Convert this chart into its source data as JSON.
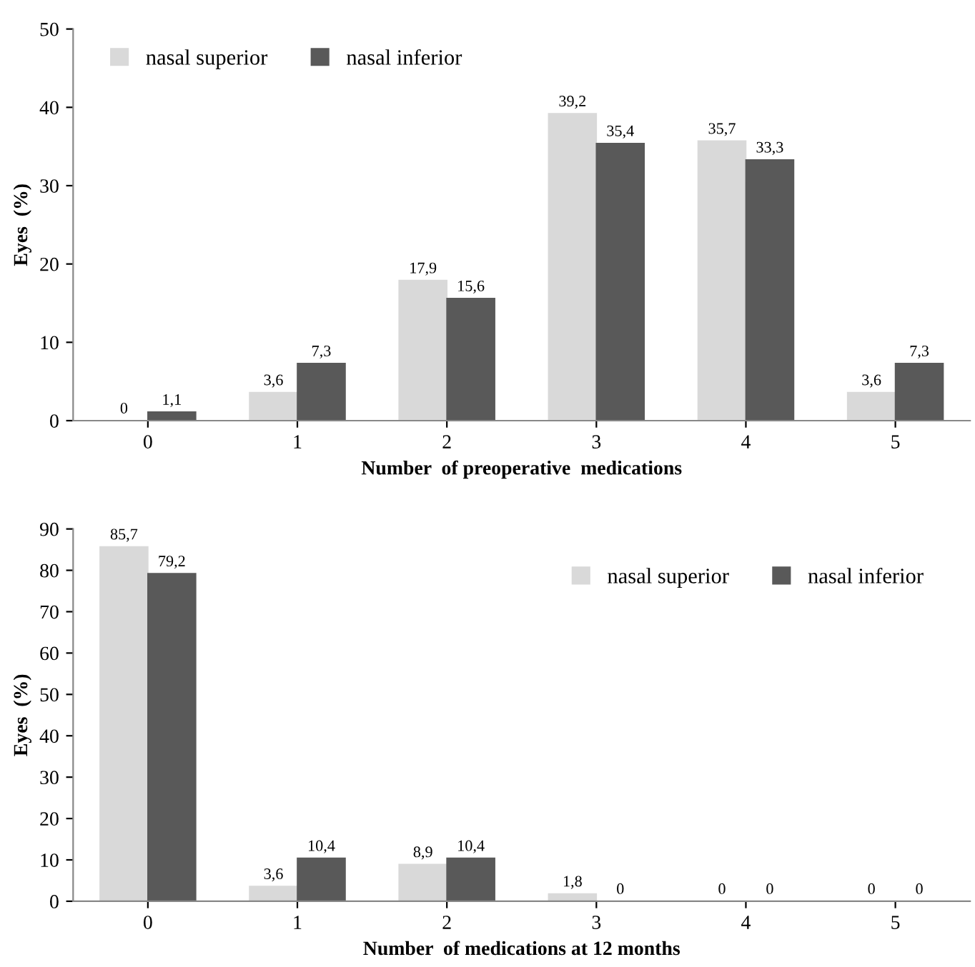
{
  "chart_data": [
    {
      "type": "bar",
      "xlabel": "Number  of preoperative  medications",
      "ylabel": "Eyes  (%)",
      "categories": [
        "0",
        "1",
        "2",
        "3",
        "4",
        "5"
      ],
      "series": [
        {
          "name": "nasal superior",
          "color": "#d9d9d9",
          "values": [
            0,
            3.6,
            17.9,
            39.2,
            35.7,
            3.6
          ],
          "value_labels": [
            "0",
            "3,6",
            "17,9",
            "39,2",
            "35,7",
            "3,6"
          ]
        },
        {
          "name": "nasal inferior",
          "color": "#595959",
          "values": [
            1.1,
            7.3,
            15.6,
            35.4,
            33.3,
            7.3
          ],
          "value_labels": [
            "1,1",
            "7,3",
            "15,6",
            "35,4",
            "33,3",
            "7,3"
          ]
        }
      ],
      "ylim": [
        0,
        50
      ],
      "yticks": [
        0,
        10,
        20,
        30,
        40,
        50
      ],
      "grid": false,
      "legend": "top left"
    },
    {
      "type": "bar",
      "xlabel": "Number  of medications at 12 months",
      "ylabel": "Eyes  (%)",
      "categories": [
        "0",
        "1",
        "2",
        "3",
        "4",
        "5"
      ],
      "series": [
        {
          "name": "nasal superior",
          "color": "#d9d9d9",
          "values": [
            85.7,
            3.6,
            8.9,
            1.8,
            0,
            0
          ],
          "value_labels": [
            "85,7",
            "3,6",
            "8,9",
            "1,8",
            "0",
            "0"
          ]
        },
        {
          "name": "nasal inferior",
          "color": "#595959",
          "values": [
            79.2,
            10.4,
            10.4,
            0,
            0,
            0
          ],
          "value_labels": [
            "79,2",
            "10,4",
            "10,4",
            "0",
            "0",
            "0"
          ]
        }
      ],
      "ylim": [
        0,
        90
      ],
      "yticks": [
        0,
        10,
        20,
        30,
        40,
        50,
        60,
        70,
        80,
        90
      ],
      "grid": false,
      "legend": "top right"
    }
  ]
}
